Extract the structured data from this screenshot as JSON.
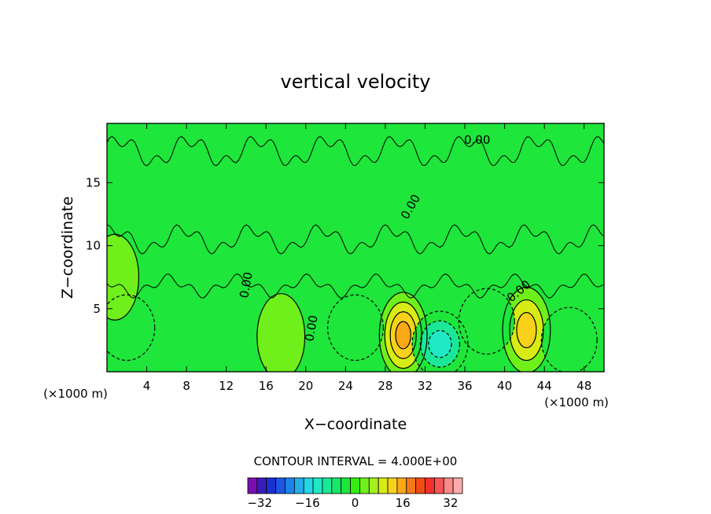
{
  "chart_data": {
    "type": "heatmap",
    "title": "vertical velocity",
    "xlabel": "X−coordinate",
    "ylabel": "Z−coordinate",
    "x_unit": "(×1000 m)",
    "y_unit": "(×1000 m)",
    "xlim": [
      0,
      50
    ],
    "ylim": [
      0,
      19.7
    ],
    "x_ticks": [
      4,
      8,
      12,
      16,
      20,
      24,
      28,
      32,
      36,
      40,
      44,
      48
    ],
    "y_ticks": [
      5,
      10,
      15
    ],
    "contour_interval_label": "CONTOUR INTERVAL = 4.000E+00",
    "contour_interval": 4.0,
    "contour_labels": [
      "0.00",
      "0.00",
      "0.00",
      "0.00",
      "0.00"
    ],
    "colorbar": {
      "range": [
        -36,
        36
      ],
      "tick_values": [
        -32,
        -16,
        0,
        16,
        32
      ],
      "tick_labels": [
        "−32",
        "−16",
        "0",
        "16",
        "32"
      ],
      "colors": [
        "#7a0fb0",
        "#3a1db8",
        "#1a2fd0",
        "#1f55e6",
        "#1a84ea",
        "#22aee9",
        "#24d6e6",
        "#20e8c4",
        "#1be896",
        "#18e66a",
        "#1ee63a",
        "#33ee10",
        "#6ff01a",
        "#a6ee1f",
        "#d7ec14",
        "#f8d21a",
        "#f9a818",
        "#f77a18",
        "#f24c14",
        "#f3302a",
        "#f65656",
        "#fa8a8a",
        "#fcaaaa"
      ]
    },
    "features": [
      {
        "x": 29.8,
        "z": 2.9,
        "peak": 16,
        "kind": "updraft"
      },
      {
        "x": 42.2,
        "z": 3.3,
        "peak": 12,
        "kind": "updraft"
      },
      {
        "x": 33.5,
        "z": 2.2,
        "peak": -12,
        "kind": "downdraft"
      },
      {
        "x": 38.2,
        "z": 4.0,
        "peak": -4,
        "kind": "downdraft"
      },
      {
        "x": 2.0,
        "z": 3.5,
        "peak": -4,
        "kind": "downdraft"
      },
      {
        "x": 25.0,
        "z": 3.5,
        "peak": -4,
        "kind": "downdraft"
      },
      {
        "x": 46.5,
        "z": 2.5,
        "peak": -4,
        "kind": "downdraft"
      },
      {
        "x": 17.5,
        "z": 2.8,
        "peak": 4,
        "kind": "updraft"
      },
      {
        "x": 0.8,
        "z": 7.5,
        "peak": 4,
        "kind": "updraft"
      }
    ]
  }
}
